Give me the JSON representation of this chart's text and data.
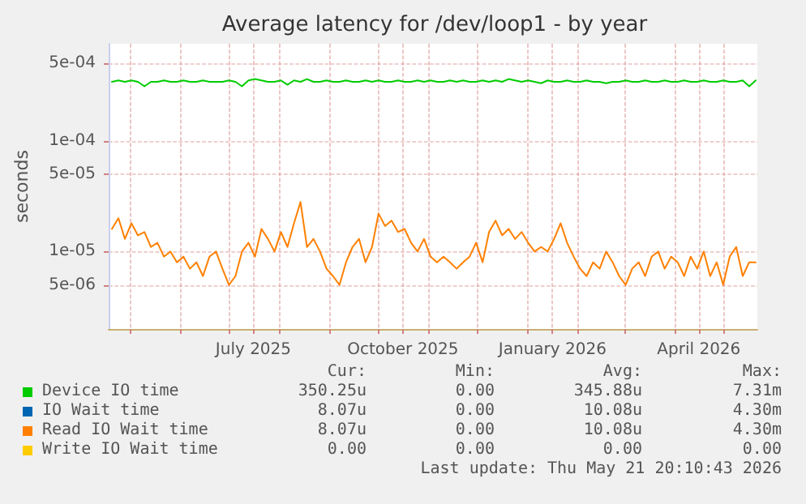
{
  "chart_data": {
    "type": "line",
    "title": "Average latency for /dev/loop1 - by year",
    "ylabel": "seconds",
    "log": "y",
    "grid": true,
    "legend": "bottom",
    "marker": "none",
    "line_style": "solid",
    "ylim": [
      2e-06,
      0.00075
    ],
    "yticks": [
      {
        "value": 5e-06,
        "label": "5e-06"
      },
      {
        "value": 1e-05,
        "label": "1e-05"
      },
      {
        "value": 5e-05,
        "label": "5e-05"
      },
      {
        "value": 0.0001,
        "label": "1e-04"
      },
      {
        "value": 0.0005,
        "label": "5e-04"
      }
    ],
    "xlim": [
      "2025-04-18",
      "2026-05-22"
    ],
    "xticks": [
      {
        "value": "2025-05-01",
        "label": null
      },
      {
        "value": "2025-06-01",
        "label": null
      },
      {
        "value": "2025-07-01",
        "label": null
      },
      {
        "value": "2025-07-16",
        "label": "July 2025"
      },
      {
        "value": "2025-08-01",
        "label": null
      },
      {
        "value": "2025-09-01",
        "label": null
      },
      {
        "value": "2025-10-01",
        "label": null
      },
      {
        "value": "2025-10-16",
        "label": "October 2025"
      },
      {
        "value": "2025-11-01",
        "label": null
      },
      {
        "value": "2025-12-01",
        "label": null
      },
      {
        "value": "2026-01-01",
        "label": null
      },
      {
        "value": "2026-01-16",
        "label": "January 2026"
      },
      {
        "value": "2026-02-01",
        "label": null
      },
      {
        "value": "2026-03-01",
        "label": null
      },
      {
        "value": "2026-04-01",
        "label": null
      },
      {
        "value": "2026-04-16",
        "label": "April 2026"
      },
      {
        "value": "2026-05-01",
        "label": null
      }
    ],
    "x": [
      "2025-04-20",
      "2025-04-24",
      "2025-04-28",
      "2025-05-02",
      "2025-05-06",
      "2025-05-10",
      "2025-05-14",
      "2025-05-18",
      "2025-05-22",
      "2025-05-26",
      "2025-05-30",
      "2025-06-03",
      "2025-06-07",
      "2025-06-11",
      "2025-06-15",
      "2025-06-19",
      "2025-06-23",
      "2025-06-27",
      "2025-07-01",
      "2025-07-05",
      "2025-07-09",
      "2025-07-13",
      "2025-07-17",
      "2025-07-21",
      "2025-07-25",
      "2025-07-29",
      "2025-08-02",
      "2025-08-06",
      "2025-08-10",
      "2025-08-14",
      "2025-08-18",
      "2025-08-22",
      "2025-08-26",
      "2025-08-30",
      "2025-09-03",
      "2025-09-07",
      "2025-09-11",
      "2025-09-15",
      "2025-09-19",
      "2025-09-23",
      "2025-09-27",
      "2025-10-01",
      "2025-10-05",
      "2025-10-09",
      "2025-10-13",
      "2025-10-17",
      "2025-10-21",
      "2025-10-25",
      "2025-10-29",
      "2025-11-02",
      "2025-11-06",
      "2025-11-10",
      "2025-11-14",
      "2025-11-18",
      "2025-11-22",
      "2025-11-26",
      "2025-11-30",
      "2025-12-04",
      "2025-12-08",
      "2025-12-12",
      "2025-12-16",
      "2025-12-20",
      "2025-12-24",
      "2025-12-28",
      "2026-01-01",
      "2026-01-05",
      "2026-01-09",
      "2026-01-13",
      "2026-01-17",
      "2026-01-21",
      "2026-01-25",
      "2026-01-29",
      "2026-02-02",
      "2026-02-06",
      "2026-02-10",
      "2026-02-14",
      "2026-02-18",
      "2026-02-22",
      "2026-02-26",
      "2026-03-02",
      "2026-03-06",
      "2026-03-10",
      "2026-03-14",
      "2026-03-18",
      "2026-03-22",
      "2026-03-26",
      "2026-03-30",
      "2026-04-03",
      "2026-04-07",
      "2026-04-11",
      "2026-04-15",
      "2026-04-19",
      "2026-04-23",
      "2026-04-27",
      "2026-05-01",
      "2026-05-05",
      "2026-05-09",
      "2026-05-13",
      "2026-05-17",
      "2026-05-21"
    ],
    "series": [
      {
        "name": "Device IO time",
        "color": "#00cc00",
        "values": [
          0.00034,
          0.00035,
          0.00034,
          0.00035,
          0.00034,
          0.00031,
          0.00034,
          0.00034,
          0.00035,
          0.00034,
          0.00034,
          0.00035,
          0.00034,
          0.00034,
          0.00035,
          0.00034,
          0.00034,
          0.00034,
          0.00035,
          0.00034,
          0.00031,
          0.00035,
          0.00036,
          0.00035,
          0.00034,
          0.00034,
          0.00035,
          0.00032,
          0.00035,
          0.00034,
          0.00036,
          0.00034,
          0.00034,
          0.00035,
          0.00034,
          0.00034,
          0.00035,
          0.00034,
          0.00034,
          0.00035,
          0.00034,
          0.00035,
          0.00034,
          0.00034,
          0.00035,
          0.00034,
          0.00034,
          0.00035,
          0.00034,
          0.00035,
          0.00034,
          0.00034,
          0.00035,
          0.00034,
          0.00035,
          0.00034,
          0.00034,
          0.00035,
          0.00034,
          0.00035,
          0.00034,
          0.00036,
          0.00035,
          0.00034,
          0.00035,
          0.00034,
          0.00033,
          0.00035,
          0.00034,
          0.00034,
          0.00035,
          0.00034,
          0.00034,
          0.00035,
          0.00034,
          0.00034,
          0.00033,
          0.00034,
          0.00034,
          0.00035,
          0.00034,
          0.00034,
          0.00035,
          0.00034,
          0.00034,
          0.00035,
          0.00034,
          0.00034,
          0.00035,
          0.00034,
          0.00034,
          0.00035,
          0.00034,
          0.00034,
          0.00035,
          0.00034,
          0.00034,
          0.00035,
          0.00031,
          0.00035
        ]
      },
      {
        "name": "IO Wait time",
        "color": "#0066b3",
        "values": [
          null,
          null,
          null,
          null,
          null,
          null,
          null,
          null,
          null,
          null,
          null,
          null,
          null,
          null,
          null,
          null,
          null,
          null,
          null,
          null,
          null,
          null,
          null,
          null,
          null,
          null,
          null,
          null,
          null,
          null,
          null,
          null,
          null,
          null,
          null,
          null,
          null,
          null,
          null,
          null,
          null,
          null,
          null,
          null,
          null,
          null,
          null,
          null,
          null,
          null,
          null,
          null,
          null,
          null,
          null,
          null,
          null,
          null,
          null,
          null,
          null,
          null,
          null,
          null,
          null,
          null,
          null,
          null,
          null,
          null,
          null,
          null,
          null,
          null,
          null,
          null,
          null,
          null,
          null,
          null,
          null,
          null,
          null,
          null,
          null,
          null,
          null,
          null,
          null,
          null,
          null,
          null,
          null,
          null,
          null,
          null,
          null,
          null,
          null,
          null
        ]
      },
      {
        "name": "Read IO Wait time",
        "color": "#ff8000",
        "values": [
          1.6e-05,
          2e-05,
          1.3e-05,
          1.8e-05,
          1.4e-05,
          1.5e-05,
          1.1e-05,
          1.2e-05,
          9e-06,
          1e-05,
          8e-06,
          9e-06,
          7e-06,
          8e-06,
          6e-06,
          9e-06,
          1e-05,
          7e-06,
          5e-06,
          6e-06,
          1e-05,
          1.2e-05,
          9e-06,
          1.6e-05,
          1.3e-05,
          1e-05,
          1.5e-05,
          1.1e-05,
          1.8e-05,
          2.8e-05,
          1.1e-05,
          1.3e-05,
          1e-05,
          7e-06,
          6e-06,
          5e-06,
          8e-06,
          1.1e-05,
          1.3e-05,
          8e-06,
          1.1e-05,
          2.2e-05,
          1.7e-05,
          1.9e-05,
          1.5e-05,
          1.6e-05,
          1.2e-05,
          1e-05,
          1.3e-05,
          9e-06,
          8e-06,
          9e-06,
          8e-06,
          7e-06,
          8e-06,
          9e-06,
          1.2e-05,
          8e-06,
          1.5e-05,
          1.9e-05,
          1.4e-05,
          1.6e-05,
          1.3e-05,
          1.5e-05,
          1.2e-05,
          1e-05,
          1.1e-05,
          1e-05,
          1.3e-05,
          1.8e-05,
          1.2e-05,
          9e-06,
          7e-06,
          6e-06,
          8e-06,
          7e-06,
          1e-05,
          8e-06,
          6e-06,
          5e-06,
          7e-06,
          8e-06,
          6e-06,
          9e-06,
          1e-05,
          7e-06,
          9e-06,
          8e-06,
          6e-06,
          9e-06,
          7e-06,
          1e-05,
          6e-06,
          8e-06,
          5e-06,
          9e-06,
          1.1e-05,
          6e-06,
          8e-06,
          8e-06
        ]
      },
      {
        "name": "Write IO Wait time",
        "color": "#ffcc00",
        "values": [
          null,
          null,
          null,
          null,
          null,
          null,
          null,
          null,
          null,
          null,
          null,
          null,
          null,
          null,
          null,
          null,
          null,
          null,
          null,
          null,
          null,
          null,
          null,
          null,
          null,
          null,
          null,
          null,
          null,
          null,
          null,
          null,
          null,
          null,
          null,
          null,
          null,
          null,
          null,
          null,
          null,
          null,
          null,
          null,
          null,
          null,
          null,
          null,
          null,
          null,
          null,
          null,
          null,
          null,
          null,
          null,
          null,
          null,
          null,
          null,
          null,
          null,
          null,
          null,
          null,
          null,
          null,
          null,
          null,
          null,
          null,
          null,
          null,
          null,
          null,
          null,
          null,
          null,
          null,
          null,
          null,
          null,
          null,
          null,
          null,
          null,
          null,
          null,
          null,
          null,
          null,
          null,
          null,
          null,
          null,
          null,
          null,
          null,
          null,
          null
        ]
      }
    ],
    "annotations": [
      "Cur:",
      "Min:",
      "Avg:",
      "Max:",
      "350.25u",
      "0.00",
      "345.88u",
      "7.31m",
      "8.07u",
      "0.00",
      "10.08u",
      "4.30m",
      "8.07u",
      "0.00",
      "10.08u",
      "4.30m",
      "0.00",
      "0.00",
      "0.00",
      "0.00",
      "Last update: Thu May 21 20:10:43 2026"
    ]
  }
}
